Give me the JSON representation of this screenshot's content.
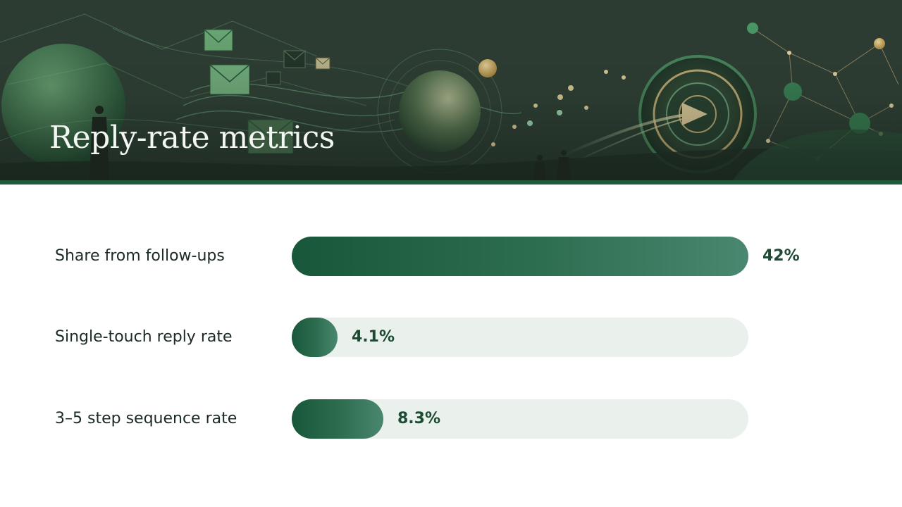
{
  "slide": {
    "title": "Reply-rate metrics"
  },
  "banner": {
    "illustration": "green abstract network with envelopes, spheres, target and silhouettes"
  },
  "colors": {
    "bar_dark": "#18573a",
    "bar_light": "#4a8770",
    "track": "#eaf1ec",
    "value_text": "#1c4a33",
    "banner_accent_line": "#1e5a3b"
  },
  "chart_data": {
    "type": "bar",
    "orientation": "horizontal",
    "categories": [
      "Share from follow-ups",
      "Single-touch reply rate",
      "3–5 step sequence rate"
    ],
    "values": [
      42,
      4.1,
      8.3
    ],
    "value_labels": [
      "42%",
      "4.1%",
      "8.3%"
    ],
    "fill_fraction": [
      1.0,
      0.1,
      0.2
    ],
    "grid": false,
    "legend": "none"
  }
}
